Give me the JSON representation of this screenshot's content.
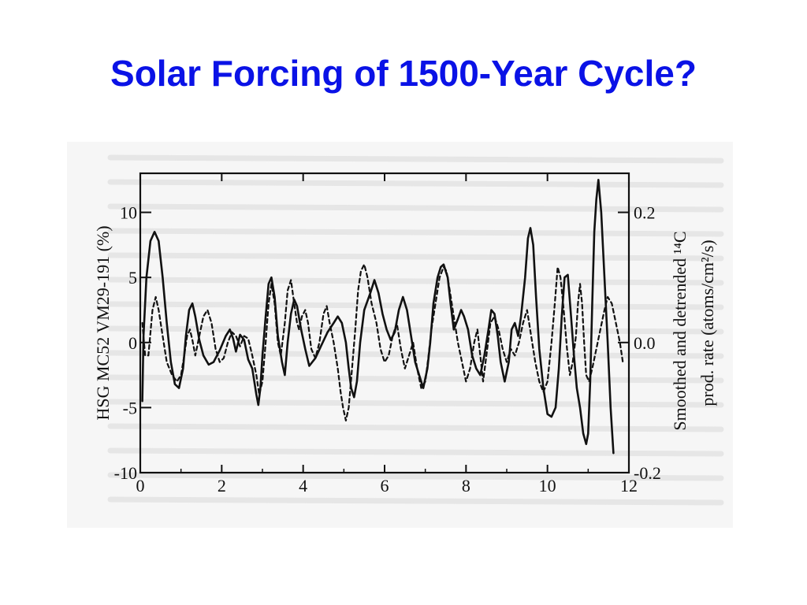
{
  "slide": {
    "title": "Solar Forcing of 1500-Year Cycle?"
  },
  "colors": {
    "title": "#0a12e6",
    "ink": "#111111",
    "scan_tint": "#cfcfcf",
    "paper": "#f4f4f4"
  },
  "chart_data": {
    "type": "line",
    "title": "",
    "xlabel": "",
    "ylabel": "HSG MC52 VM29-191 (%)",
    "ylabel_right_line1": "Smoothed and detrended ¹⁴C",
    "ylabel_right_line2": "prod. rate (atoms/cm²/s)",
    "xlim": [
      0,
      12
    ],
    "ylim": [
      -10,
      13
    ],
    "ylim_right": [
      -0.2,
      0.2
    ],
    "x_ticks": [
      "0",
      "2",
      "4",
      "6",
      "8",
      "10",
      "12"
    ],
    "y_ticks": [
      "10",
      "5",
      "0",
      "-5",
      "-10"
    ],
    "y_right_ticks": [
      "0.2",
      "0.0",
      "-0.2"
    ],
    "grid": false,
    "legend": "none",
    "series": [
      {
        "style": "solid",
        "points": [
          [
            0.05,
            -4.5
          ],
          [
            0.08,
            0.5
          ],
          [
            0.15,
            5
          ],
          [
            0.25,
            7.8
          ],
          [
            0.35,
            8.5
          ],
          [
            0.45,
            7.8
          ],
          [
            0.55,
            5
          ],
          [
            0.65,
            1.5
          ],
          [
            0.75,
            -1.5
          ],
          [
            0.85,
            -3.2
          ],
          [
            0.95,
            -3.5
          ],
          [
            1.05,
            -2
          ],
          [
            1.12,
            0.5
          ],
          [
            1.2,
            2.5
          ],
          [
            1.28,
            3
          ],
          [
            1.35,
            2
          ],
          [
            1.45,
            0.2
          ],
          [
            1.55,
            -1
          ],
          [
            1.68,
            -1.7
          ],
          [
            1.8,
            -1.5
          ],
          [
            1.95,
            -0.6
          ],
          [
            2.1,
            0.5
          ],
          [
            2.2,
            1
          ],
          [
            2.28,
            0.3
          ],
          [
            2.35,
            -0.7
          ],
          [
            2.45,
            0.6
          ],
          [
            2.55,
            0.2
          ],
          [
            2.65,
            -1.3
          ],
          [
            2.75,
            -2
          ],
          [
            2.85,
            -4
          ],
          [
            2.9,
            -4.8
          ],
          [
            2.95,
            -3.5
          ],
          [
            3.0,
            -1
          ],
          [
            3.08,
            2
          ],
          [
            3.15,
            4.5
          ],
          [
            3.22,
            5
          ],
          [
            3.3,
            3.5
          ],
          [
            3.38,
            0.5
          ],
          [
            3.48,
            -1.5
          ],
          [
            3.55,
            -2.5
          ],
          [
            3.62,
            0
          ],
          [
            3.7,
            2.2
          ],
          [
            3.78,
            3.3
          ],
          [
            3.85,
            2.8
          ],
          [
            3.95,
            1
          ],
          [
            4.05,
            -0.5
          ],
          [
            4.15,
            -1.8
          ],
          [
            4.3,
            -1.2
          ],
          [
            4.45,
            -0.2
          ],
          [
            4.6,
            0.8
          ],
          [
            4.75,
            1.5
          ],
          [
            4.85,
            2
          ],
          [
            4.95,
            1.5
          ],
          [
            5.05,
            0
          ],
          [
            5.12,
            -2
          ],
          [
            5.18,
            -3.5
          ],
          [
            5.25,
            -4.2
          ],
          [
            5.32,
            -3
          ],
          [
            5.4,
            0
          ],
          [
            5.5,
            2.5
          ],
          [
            5.65,
            3.8
          ],
          [
            5.75,
            4.8
          ],
          [
            5.85,
            3.8
          ],
          [
            5.95,
            2.2
          ],
          [
            6.05,
            1
          ],
          [
            6.15,
            0.2
          ],
          [
            6.25,
            0.8
          ],
          [
            6.35,
            2.5
          ],
          [
            6.45,
            3.5
          ],
          [
            6.55,
            2.5
          ],
          [
            6.65,
            0.5
          ],
          [
            6.75,
            -1.5
          ],
          [
            6.85,
            -2.5
          ],
          [
            6.95,
            -3.5
          ],
          [
            7.05,
            -2
          ],
          [
            7.12,
            0
          ],
          [
            7.2,
            3
          ],
          [
            7.3,
            5
          ],
          [
            7.38,
            5.8
          ],
          [
            7.45,
            6
          ],
          [
            7.55,
            5
          ],
          [
            7.62,
            3
          ],
          [
            7.7,
            1
          ],
          [
            7.8,
            1.8
          ],
          [
            7.88,
            2.5
          ],
          [
            7.95,
            2
          ],
          [
            8.05,
            1
          ],
          [
            8.15,
            -1
          ],
          [
            8.25,
            -2
          ],
          [
            8.35,
            -2.5
          ],
          [
            8.45,
            -1
          ],
          [
            8.55,
            1
          ],
          [
            8.62,
            2.5
          ],
          [
            8.7,
            2.2
          ],
          [
            8.78,
            0.5
          ],
          [
            8.85,
            -1.5
          ],
          [
            8.95,
            -3
          ],
          [
            9.05,
            -1.5
          ],
          [
            9.12,
            1
          ],
          [
            9.2,
            1.5
          ],
          [
            9.28,
            0.5
          ],
          [
            9.35,
            2
          ],
          [
            9.45,
            5
          ],
          [
            9.52,
            8
          ],
          [
            9.58,
            8.8
          ],
          [
            9.65,
            7.5
          ],
          [
            9.72,
            3.5
          ],
          [
            9.8,
            -0.5
          ],
          [
            9.9,
            -3.5
          ],
          [
            10.0,
            -5.5
          ],
          [
            10.1,
            -5.7
          ],
          [
            10.2,
            -5
          ],
          [
            10.28,
            -2
          ],
          [
            10.35,
            2
          ],
          [
            10.42,
            5
          ],
          [
            10.5,
            5.2
          ],
          [
            10.58,
            2
          ],
          [
            10.65,
            -1
          ],
          [
            10.72,
            -3.5
          ],
          [
            10.8,
            -5
          ],
          [
            10.88,
            -7
          ],
          [
            10.95,
            -7.8
          ],
          [
            11.0,
            -7
          ],
          [
            11.05,
            -3
          ],
          [
            11.1,
            3
          ],
          [
            11.15,
            8.5
          ],
          [
            11.2,
            11
          ],
          [
            11.25,
            12.5
          ],
          [
            11.32,
            10
          ],
          [
            11.4,
            5
          ],
          [
            11.48,
            0
          ],
          [
            11.55,
            -5
          ],
          [
            11.62,
            -8.5
          ]
        ]
      },
      {
        "style": "dashed",
        "points": [
          [
            0.05,
            1.5
          ],
          [
            0.12,
            -1
          ],
          [
            0.2,
            -1
          ],
          [
            0.3,
            2.5
          ],
          [
            0.38,
            3.5
          ],
          [
            0.45,
            2.5
          ],
          [
            0.55,
            0.5
          ],
          [
            0.65,
            -1.5
          ],
          [
            0.78,
            -2.5
          ],
          [
            0.9,
            -3
          ],
          [
            1.0,
            -2.5
          ],
          [
            1.08,
            -1
          ],
          [
            1.15,
            0.5
          ],
          [
            1.22,
            1
          ],
          [
            1.28,
            0.2
          ],
          [
            1.35,
            -1
          ],
          [
            1.45,
            0.5
          ],
          [
            1.55,
            2
          ],
          [
            1.65,
            2.5
          ],
          [
            1.75,
            1.5
          ],
          [
            1.85,
            -0.5
          ],
          [
            1.95,
            -1.5
          ],
          [
            2.05,
            -1.2
          ],
          [
            2.15,
            0
          ],
          [
            2.25,
            0.8
          ],
          [
            2.35,
            0.5
          ],
          [
            2.45,
            -0.3
          ],
          [
            2.55,
            0.5
          ],
          [
            2.65,
            0.3
          ],
          [
            2.75,
            -1
          ],
          [
            2.85,
            -2.5
          ],
          [
            2.92,
            -4
          ],
          [
            3.0,
            -3
          ],
          [
            3.08,
            0
          ],
          [
            3.15,
            3
          ],
          [
            3.22,
            4.5
          ],
          [
            3.3,
            3
          ],
          [
            3.38,
            0
          ],
          [
            3.45,
            -1
          ],
          [
            3.55,
            1.5
          ],
          [
            3.62,
            4
          ],
          [
            3.7,
            4.8
          ],
          [
            3.78,
            3
          ],
          [
            3.85,
            1.5
          ],
          [
            3.9,
            1
          ],
          [
            3.97,
            2
          ],
          [
            4.05,
            2.5
          ],
          [
            4.12,
            1.5
          ],
          [
            4.2,
            -0.5
          ],
          [
            4.3,
            -1.2
          ],
          [
            4.4,
            0
          ],
          [
            4.5,
            2.2
          ],
          [
            4.58,
            2.8
          ],
          [
            4.65,
            1.5
          ],
          [
            4.75,
            0
          ],
          [
            4.85,
            -2
          ],
          [
            4.92,
            -3.8
          ],
          [
            4.98,
            -5
          ],
          [
            5.05,
            -6
          ],
          [
            5.12,
            -5
          ],
          [
            5.2,
            -2
          ],
          [
            5.28,
            1
          ],
          [
            5.35,
            4
          ],
          [
            5.42,
            5.5
          ],
          [
            5.5,
            6
          ],
          [
            5.58,
            5
          ],
          [
            5.68,
            3
          ],
          [
            5.8,
            1.5
          ],
          [
            5.9,
            -0.5
          ],
          [
            6.0,
            -1.5
          ],
          [
            6.1,
            -1
          ],
          [
            6.2,
            0.5
          ],
          [
            6.3,
            1.5
          ],
          [
            6.4,
            -0.5
          ],
          [
            6.5,
            -2
          ],
          [
            6.6,
            -1
          ],
          [
            6.7,
            0
          ],
          [
            6.8,
            -2
          ],
          [
            6.9,
            -3.5
          ],
          [
            7.0,
            -3
          ],
          [
            7.08,
            -1
          ],
          [
            7.15,
            1
          ],
          [
            7.25,
            3
          ],
          [
            7.35,
            5
          ],
          [
            7.45,
            5.8
          ],
          [
            7.52,
            5.5
          ],
          [
            7.6,
            4
          ],
          [
            7.7,
            2
          ],
          [
            7.8,
            0
          ],
          [
            7.9,
            -1.5
          ],
          [
            8.0,
            -3
          ],
          [
            8.1,
            -2
          ],
          [
            8.2,
            0
          ],
          [
            8.28,
            1
          ],
          [
            8.35,
            -1
          ],
          [
            8.42,
            -3
          ],
          [
            8.5,
            -1
          ],
          [
            8.6,
            1.5
          ],
          [
            8.7,
            2
          ],
          [
            8.8,
            1
          ],
          [
            8.9,
            -0.5
          ],
          [
            9.0,
            -1.5
          ],
          [
            9.1,
            -0.5
          ],
          [
            9.2,
            -1
          ],
          [
            9.3,
            0
          ],
          [
            9.4,
            1.5
          ],
          [
            9.5,
            2.5
          ],
          [
            9.6,
            0.5
          ],
          [
            9.7,
            -1.5
          ],
          [
            9.8,
            -3
          ],
          [
            9.9,
            -3.8
          ],
          [
            10.0,
            -3
          ],
          [
            10.1,
            0
          ],
          [
            10.18,
            3
          ],
          [
            10.25,
            5.8
          ],
          [
            10.32,
            5
          ],
          [
            10.4,
            2.5
          ],
          [
            10.48,
            -0.5
          ],
          [
            10.55,
            -2.5
          ],
          [
            10.62,
            -1.5
          ],
          [
            10.7,
            0.5
          ],
          [
            10.75,
            3
          ],
          [
            10.8,
            4.5
          ],
          [
            10.85,
            3
          ],
          [
            10.9,
            0
          ],
          [
            10.95,
            -2.5
          ],
          [
            11.02,
            -3
          ],
          [
            11.1,
            -2
          ],
          [
            11.2,
            -0.5
          ],
          [
            11.3,
            1
          ],
          [
            11.4,
            2.5
          ],
          [
            11.48,
            3.5
          ],
          [
            11.58,
            3
          ],
          [
            11.68,
            1.5
          ],
          [
            11.78,
            0
          ],
          [
            11.85,
            -1.5
          ]
        ]
      }
    ]
  }
}
